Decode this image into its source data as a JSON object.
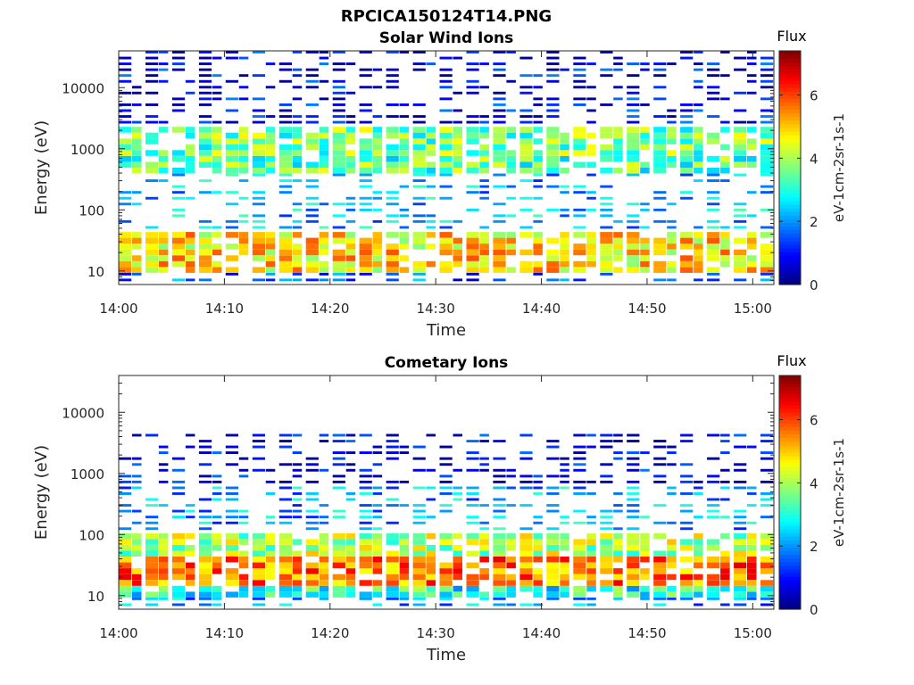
{
  "figure": {
    "title": "RPCICA150124T14.PNG"
  },
  "colorbar": {
    "title": "Flux",
    "label": "eV-1cm-2sr-1s-1",
    "ticks": [
      "0",
      "2",
      "4",
      "6"
    ],
    "range": [
      0,
      7.4
    ]
  },
  "chart_data": [
    {
      "type": "heatmap",
      "title": "Solar Wind Ions",
      "xlabel": "Time",
      "ylabel": "Energy (eV)",
      "y_scale": "log",
      "ylim": [
        6,
        40000
      ],
      "xlim": [
        "14:00",
        "15:02"
      ],
      "x_ticks": [
        "14:00",
        "14:10",
        "14:20",
        "14:30",
        "14:40",
        "14:50",
        "15:00"
      ],
      "y_ticks": [
        "10",
        "100",
        "1000",
        "10000"
      ],
      "colorbar": {
        "label": "Flux",
        "range": [
          0,
          7.4
        ]
      },
      "bands": [
        {
          "range_eV": [
            6,
            10
          ],
          "typical_flux": 1.5
        },
        {
          "range_eV": [
            10,
            40
          ],
          "typical_flux": 4.8
        },
        {
          "range_eV": [
            40,
            400
          ],
          "typical_flux": 2.3
        },
        {
          "range_eV": [
            400,
            800
          ],
          "typical_flux": 3.4
        },
        {
          "range_eV": [
            800,
            2500
          ],
          "typical_flux": 3.6
        },
        {
          "range_eV": [
            2500,
            40000
          ],
          "typical_flux": 0.8
        }
      ],
      "seed": 11
    },
    {
      "type": "heatmap",
      "title": "Cometary Ions",
      "xlabel": "Time",
      "ylabel": "Energy (eV)",
      "y_scale": "log",
      "ylim": [
        6,
        40000
      ],
      "xlim": [
        "14:00",
        "15:02"
      ],
      "x_ticks": [
        "14:00",
        "14:10",
        "14:20",
        "14:30",
        "14:40",
        "14:50",
        "15:00"
      ],
      "y_ticks": [
        "10",
        "100",
        "1000",
        "10000"
      ],
      "colorbar": {
        "label": "Flux",
        "range": [
          0,
          7.4
        ]
      },
      "bands": [
        {
          "range_eV": [
            6,
            10
          ],
          "typical_flux": 2.0
        },
        {
          "range_eV": [
            10,
            15
          ],
          "typical_flux": 3.0
        },
        {
          "range_eV": [
            15,
            40
          ],
          "typical_flux": 5.6
        },
        {
          "range_eV": [
            40,
            100
          ],
          "typical_flux": 4.0
        },
        {
          "range_eV": [
            100,
            600
          ],
          "typical_flux": 2.2
        },
        {
          "range_eV": [
            600,
            4000
          ],
          "typical_flux": 0.7
        }
      ],
      "seed": 29
    }
  ]
}
